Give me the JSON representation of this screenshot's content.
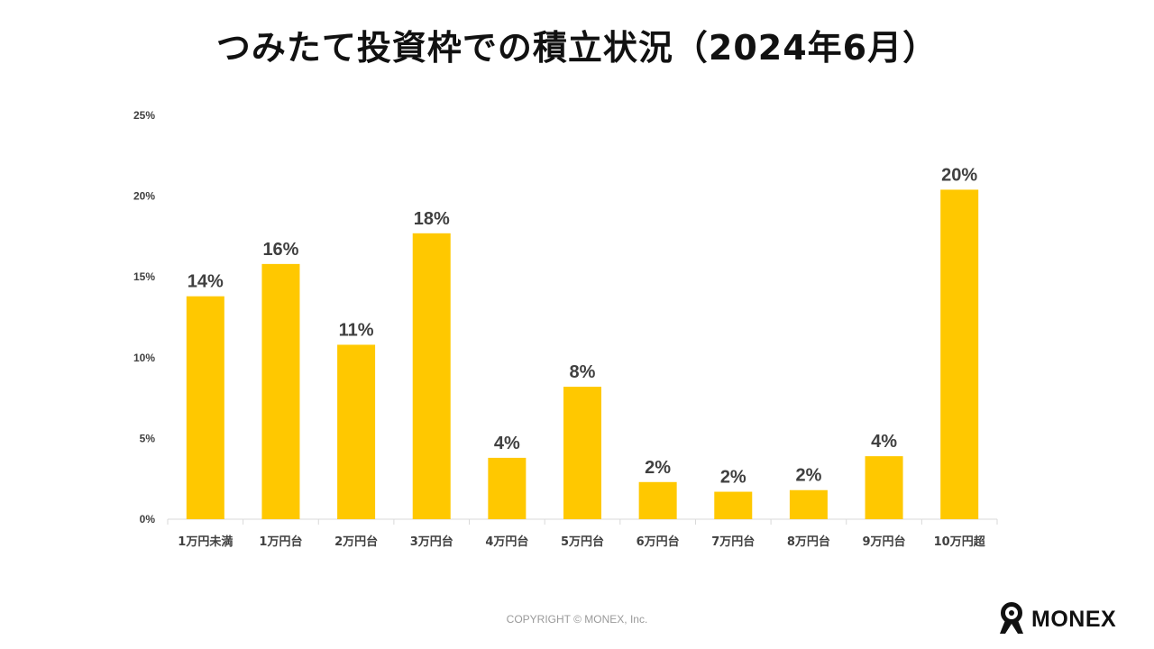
{
  "page": {
    "title": "つみたて投資枠での積立状況（2024年6月）",
    "copyright": "COPYRIGHT © MONEX, Inc.",
    "brand": "MONEX"
  },
  "colors": {
    "bar": "#FFC800",
    "axis": "#d9d9d9",
    "label": "#404040",
    "tick": "#404040"
  },
  "chart_data": {
    "type": "bar",
    "title": "つみたて投資枠での積立状況（2024年6月）",
    "categories": [
      "1万円未満",
      "1万円台",
      "2万円台",
      "3万円台",
      "4万円台",
      "5万円台",
      "6万円台",
      "7万円台",
      "8万円台",
      "9万円台",
      "10万円超"
    ],
    "values": [
      13.8,
      15.8,
      10.8,
      17.7,
      3.8,
      8.2,
      2.3,
      1.7,
      1.8,
      3.9,
      20.4
    ],
    "data_labels": [
      "14%",
      "16%",
      "11%",
      "18%",
      "4%",
      "8%",
      "2%",
      "2%",
      "2%",
      "4%",
      "20%"
    ],
    "ylim": [
      0,
      25
    ],
    "yticks": [
      0,
      5,
      10,
      15,
      20,
      25
    ],
    "ytick_labels": [
      "0%",
      "5%",
      "10%",
      "15%",
      "20%",
      "25%"
    ],
    "xlabel": "",
    "ylabel": "",
    "grid": false,
    "legend": "none"
  }
}
